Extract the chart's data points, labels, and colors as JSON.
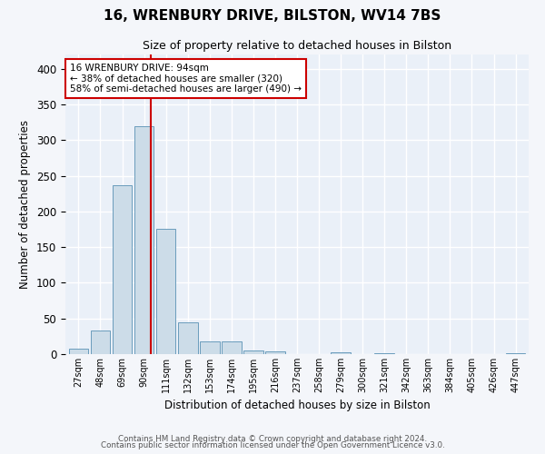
{
  "title": "16, WRENBURY DRIVE, BILSTON, WV14 7BS",
  "subtitle": "Size of property relative to detached houses in Bilston",
  "xlabel": "Distribution of detached houses by size in Bilston",
  "ylabel": "Number of detached properties",
  "bar_color": "#ccdce8",
  "bar_edge_color": "#6a9cbc",
  "background_color": "#eaf0f8",
  "grid_color": "#ffffff",
  "categories": [
    "27sqm",
    "48sqm",
    "69sqm",
    "90sqm",
    "111sqm",
    "132sqm",
    "153sqm",
    "174sqm",
    "195sqm",
    "216sqm",
    "237sqm",
    "258sqm",
    "279sqm",
    "300sqm",
    "321sqm",
    "342sqm",
    "363sqm",
    "384sqm",
    "405sqm",
    "426sqm",
    "447sqm"
  ],
  "values": [
    8,
    33,
    237,
    320,
    175,
    45,
    18,
    18,
    5,
    4,
    0,
    0,
    3,
    0,
    1,
    0,
    0,
    0,
    0,
    0,
    1
  ],
  "ylim": [
    0,
    420
  ],
  "yticks": [
    0,
    50,
    100,
    150,
    200,
    250,
    300,
    350,
    400
  ],
  "property_line_x": 3.3,
  "property_line_color": "#cc0000",
  "annotation_text": "16 WRENBURY DRIVE: 94sqm\n← 38% of detached houses are smaller (320)\n58% of semi-detached houses are larger (490) →",
  "annotation_box_color": "#ffffff",
  "annotation_box_edge_color": "#cc0000",
  "footer_line1": "Contains HM Land Registry data © Crown copyright and database right 2024.",
  "footer_line2": "Contains public sector information licensed under the Open Government Licence v3.0."
}
